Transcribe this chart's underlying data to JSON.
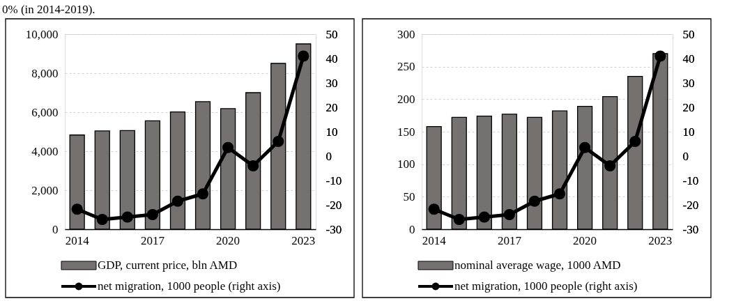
{
  "chart_data": [
    {
      "type": "bar",
      "annotations": [
        "0% (in 2014-2019)."
      ],
      "categories": [
        "2014",
        null,
        null,
        "2017",
        null,
        null,
        "2020",
        null,
        null,
        "2023"
      ],
      "series": [
        {
          "name": "GDP, current price, bln AMD",
          "color": "#767171",
          "values": [
            4830,
            5040,
            5060,
            5560,
            6010,
            6540,
            6180,
            7000,
            8500,
            9500
          ]
        },
        {
          "name": "net migration, 1000 people (right axis)",
          "type": "line",
          "axis": "y2",
          "color": "#000000",
          "values": [
            -21.8,
            -26,
            -25,
            -24,
            -18.5,
            -15.5,
            3.5,
            -4,
            6,
            41
          ]
        }
      ],
      "ylim": [
        0,
        10000
      ],
      "yticks": [
        0,
        {
          "value": 2000,
          "label": "2,000"
        },
        {
          "value": 4000,
          "label": "4,000"
        },
        {
          "value": 6000,
          "label": "6,000"
        },
        {
          "value": 8000,
          "label": "8,000"
        },
        {
          "value": 10000,
          "label": "10,000"
        }
      ],
      "y2lim": [
        -30,
        50
      ],
      "y2ticks": [
        -30,
        -20,
        -10,
        0,
        10,
        20,
        30,
        40,
        50
      ],
      "grid": "y",
      "legend": "bottom",
      "marker": "circle"
    },
    {
      "type": "bar",
      "categories": [
        "2014",
        null,
        null,
        "2017",
        null,
        null,
        "2020",
        null,
        null,
        "2023"
      ],
      "series": [
        {
          "name": "nominal average wage, 1000 AMD",
          "color": "#767171",
          "values": [
            158,
            172,
            174,
            177,
            172,
            182,
            189,
            204,
            235,
            270
          ]
        },
        {
          "name": "net migration, 1000 people (right axis)",
          "type": "line",
          "axis": "y2",
          "color": "#000000",
          "values": [
            -21.8,
            -26,
            -25,
            -24,
            -18.5,
            -15.5,
            3.5,
            -4,
            6,
            41
          ]
        }
      ],
      "ylim": [
        0,
        300
      ],
      "yticks": [
        0,
        50,
        100,
        150,
        200,
        250,
        300
      ],
      "y2lim": [
        -30,
        50
      ],
      "y2ticks": [
        -30,
        -20,
        -10,
        0,
        10,
        20,
        30,
        40,
        50
      ],
      "grid": "y",
      "legend": "bottom",
      "marker": "circle"
    }
  ]
}
